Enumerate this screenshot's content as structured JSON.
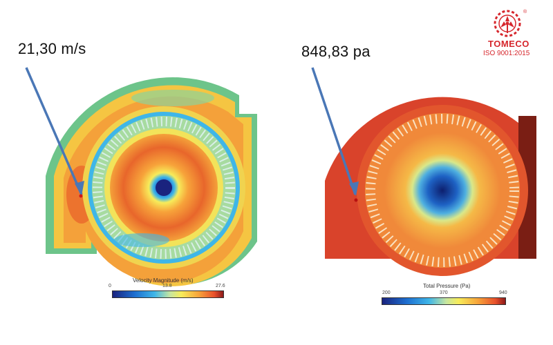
{
  "left_panel": {
    "callout": "21,30 m/s",
    "legend_title": "Velocity  Magnitude (m/s)",
    "tick_min": "0",
    "tick_mid": "13.8",
    "tick_max": "27.6"
  },
  "right_panel": {
    "callout": "848,83 pa",
    "legend_title": "Total Pressure (Pa)",
    "tick_min": "200",
    "tick_mid": "370",
    "tick_max": "940"
  },
  "logo": {
    "name": "TOMECO",
    "certification": "ISO 9001:2015",
    "registered_mark": "®"
  },
  "colors": {
    "arrow": "#4a77b6",
    "brand_red": "#d6262c",
    "colormap": [
      "#1a237e",
      "#1e6fd0",
      "#3fb6e8",
      "#c7e6a0",
      "#f7ec5a",
      "#f7a33a",
      "#e8502b",
      "#8b1a1a"
    ]
  }
}
